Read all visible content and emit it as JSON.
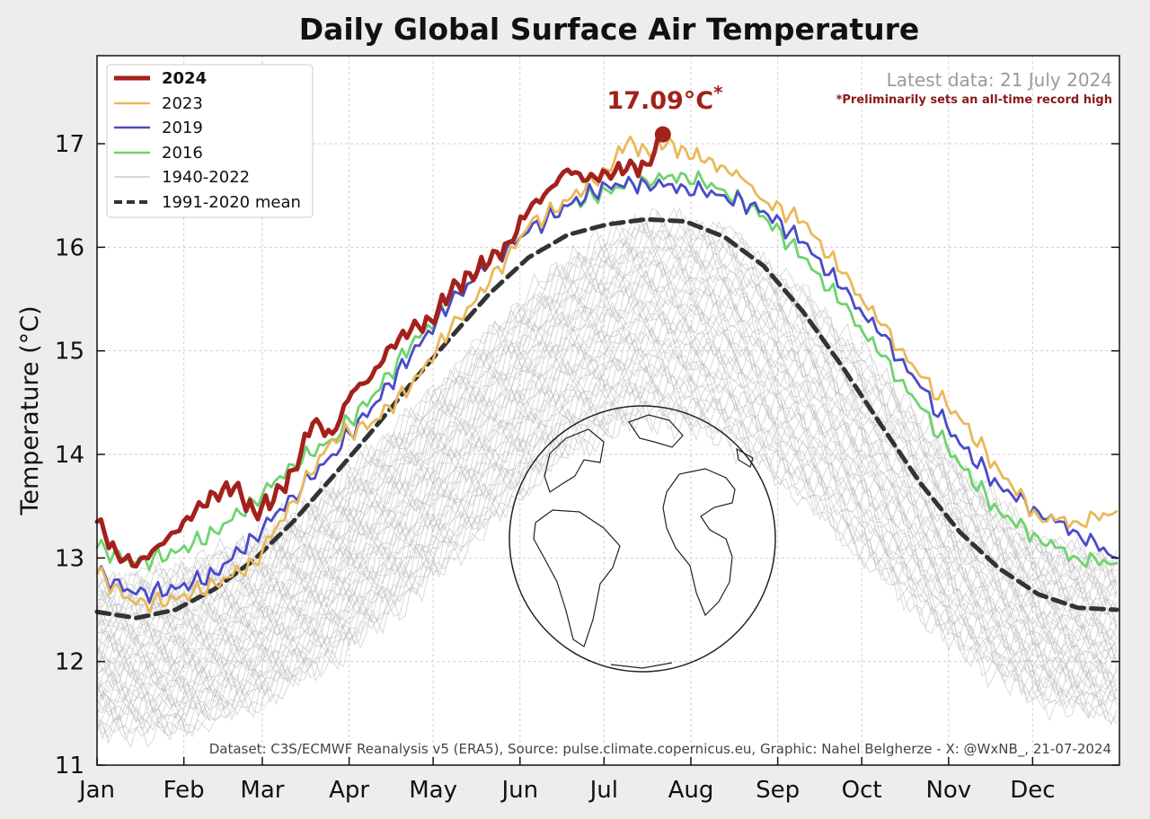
{
  "chart_data": {
    "type": "line",
    "title": "Daily Global Surface Air Temperature",
    "xlabel": "",
    "ylabel": "Temperature (°C)",
    "x_tick_labels": [
      "Jan",
      "Feb",
      "Mar",
      "Apr",
      "May",
      "Jun",
      "Jul",
      "Aug",
      "Sep",
      "Oct",
      "Nov",
      "Dec"
    ],
    "y_ticks": [
      11,
      12,
      13,
      14,
      15,
      16,
      17
    ],
    "ylim": [
      11,
      17.85
    ],
    "xlim_day_of_year": [
      1,
      366
    ],
    "grid": true,
    "legend_position": "top-left",
    "latest_data_label": "Latest data: 21 July 2024",
    "record_note": "*Preliminarily sets an all-time record high",
    "peak_annotation": {
      "text": "17.09°C",
      "marker": "*",
      "date": "21 July 2024",
      "value": 17.09
    },
    "source_note": "Dataset: C3S/ECMWF Reanalysis v5 (ERA5), Source: pulse.climate.copernicus.eu, Graphic: Nahel Belgherze - X: @WxNB_, 21-07-2024",
    "colors": {
      "2024": "#a3211c",
      "2023": "#e8b95b",
      "2019": "#4a4ac9",
      "2016": "#6fd36f",
      "1940-2022": "#bdbdbd",
      "1991-2020 mean": "#333333"
    },
    "series": [
      {
        "name": "2024",
        "x": [
          1,
          8,
          15,
          22,
          29,
          36,
          43,
          50,
          57,
          64,
          71,
          78,
          85,
          92,
          99,
          106,
          113,
          120,
          127,
          134,
          141,
          148,
          155,
          162,
          169,
          176,
          183,
          190,
          197,
          203
        ],
        "values": [
          13.35,
          13.05,
          12.92,
          13.1,
          13.25,
          13.45,
          13.62,
          13.68,
          13.45,
          13.55,
          13.85,
          14.3,
          14.2,
          14.6,
          14.75,
          15.05,
          15.2,
          15.3,
          15.55,
          15.75,
          15.85,
          16.05,
          16.35,
          16.55,
          16.75,
          16.65,
          16.72,
          16.75,
          16.8,
          17.09
        ]
      },
      {
        "name": "2023",
        "x": [
          1,
          15,
          29,
          43,
          57,
          71,
          85,
          99,
          113,
          127,
          141,
          155,
          169,
          183,
          190,
          197,
          204,
          211,
          218,
          225,
          232,
          239,
          253,
          267,
          281,
          295,
          309,
          323,
          337,
          351,
          365
        ],
        "values": [
          12.85,
          12.55,
          12.6,
          12.75,
          12.95,
          13.55,
          14.15,
          14.3,
          14.65,
          15.2,
          15.65,
          16.2,
          16.45,
          16.75,
          17.0,
          16.95,
          16.98,
          16.95,
          16.82,
          16.78,
          16.65,
          16.45,
          16.25,
          15.75,
          15.25,
          14.75,
          14.35,
          13.85,
          13.4,
          13.35,
          13.45
        ]
      },
      {
        "name": "2019",
        "x": [
          1,
          15,
          29,
          43,
          57,
          71,
          85,
          99,
          113,
          127,
          141,
          155,
          169,
          183,
          197,
          211,
          225,
          239,
          253,
          267,
          281,
          295,
          309,
          323,
          337,
          351,
          365
        ],
        "values": [
          12.85,
          12.65,
          12.7,
          12.85,
          13.2,
          13.6,
          14.0,
          14.45,
          14.95,
          15.45,
          15.85,
          16.15,
          16.4,
          16.6,
          16.62,
          16.58,
          16.5,
          16.35,
          16.05,
          15.6,
          15.15,
          14.65,
          14.1,
          13.7,
          13.45,
          13.25,
          13.0
        ]
      },
      {
        "name": "2016",
        "x": [
          1,
          15,
          29,
          43,
          57,
          71,
          85,
          99,
          113,
          127,
          141,
          155,
          169,
          183,
          197,
          211,
          225,
          239,
          253,
          267,
          281,
          295,
          309,
          323,
          337,
          351,
          365
        ],
        "values": [
          13.1,
          12.95,
          13.05,
          13.25,
          13.55,
          13.9,
          14.15,
          14.55,
          15.05,
          15.45,
          15.85,
          16.15,
          16.4,
          16.55,
          16.65,
          16.7,
          16.55,
          16.3,
          15.9,
          15.45,
          14.95,
          14.45,
          13.9,
          13.45,
          13.2,
          13.0,
          12.95
        ]
      },
      {
        "name": "1991-2020 mean",
        "x": [
          1,
          15,
          29,
          43,
          57,
          71,
          85,
          99,
          113,
          127,
          141,
          155,
          169,
          183,
          197,
          211,
          225,
          239,
          253,
          267,
          281,
          295,
          309,
          323,
          337,
          351,
          365
        ],
        "values": [
          12.48,
          12.42,
          12.5,
          12.7,
          12.98,
          13.35,
          13.78,
          14.22,
          14.68,
          15.12,
          15.55,
          15.9,
          16.12,
          16.22,
          16.27,
          16.25,
          16.1,
          15.82,
          15.38,
          14.85,
          14.28,
          13.72,
          13.25,
          12.9,
          12.65,
          12.52,
          12.5
        ]
      }
    ],
    "historical_envelope": {
      "name": "1940-2022",
      "x": [
        1,
        29,
        57,
        85,
        113,
        141,
        169,
        197,
        225,
        253,
        281,
        309,
        337,
        365
      ],
      "low": [
        11.3,
        11.3,
        11.55,
        12.0,
        12.6,
        13.3,
        14.0,
        14.35,
        14.15,
        13.55,
        12.8,
        12.1,
        11.6,
        11.45
      ],
      "high": [
        12.8,
        12.9,
        13.2,
        13.7,
        14.4,
        15.2,
        15.9,
        16.3,
        16.2,
        15.6,
        14.8,
        13.9,
        13.2,
        13.0
      ]
    }
  }
}
